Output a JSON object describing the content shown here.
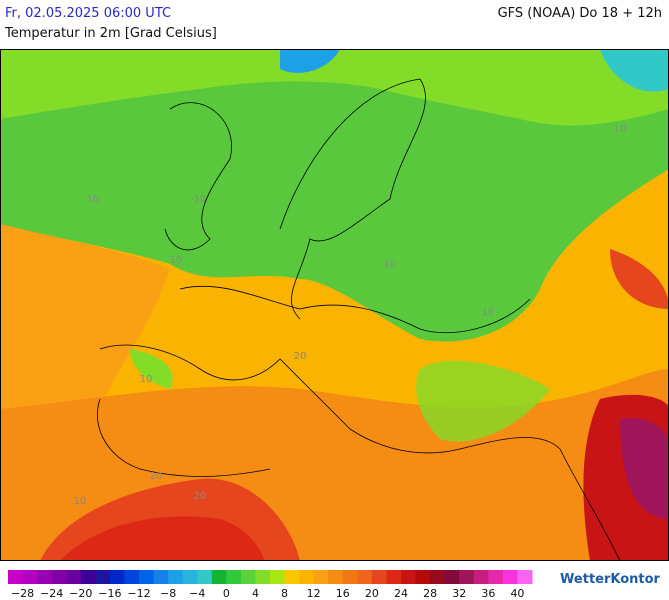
{
  "header": {
    "date": "Fr, 02.05.2025 06:00 UTC",
    "model": "GFS (NOAA) Do 18 + 12h",
    "subtitle": "Temperatur in 2m [Grad Celsius]"
  },
  "map": {
    "contour_labels": [
      "10",
      "10",
      "10",
      "10",
      "10",
      "10",
      "10",
      "20",
      "20",
      "20",
      "10"
    ]
  },
  "legend": {
    "range": [
      -30,
      42
    ],
    "colors": [
      "#c800c8",
      "#b400c0",
      "#9b00b4",
      "#8200a8",
      "#6a00a0",
      "#3c0096",
      "#1e14a0",
      "#0028c8",
      "#0046dc",
      "#0064e6",
      "#1482e6",
      "#1ea0e6",
      "#28b4dc",
      "#32c8c8",
      "#14b432",
      "#32c83c",
      "#5ad23c",
      "#82dc28",
      "#aae614",
      "#fac800",
      "#fab400",
      "#faa014",
      "#f58c14",
      "#f07814",
      "#f0641e",
      "#e6461e",
      "#dc2814",
      "#c81414",
      "#b40a0a",
      "#960a1e",
      "#820a3c",
      "#a0145a",
      "#c81e82",
      "#e628aa",
      "#fa32dc",
      "#fa64f0"
    ],
    "ticks": [
      {
        "value": -28,
        "label": "−28"
      },
      {
        "value": -24,
        "label": "−24"
      },
      {
        "value": -20,
        "label": "−20"
      },
      {
        "value": -16,
        "label": "−16"
      },
      {
        "value": -12,
        "label": "−12"
      },
      {
        "value": -8,
        "label": "−8"
      },
      {
        "value": -4,
        "label": "−4"
      },
      0,
      4,
      8,
      12,
      16,
      20,
      24,
      28,
      32,
      36,
      40
    ]
  },
  "brand": "WetterKontor"
}
